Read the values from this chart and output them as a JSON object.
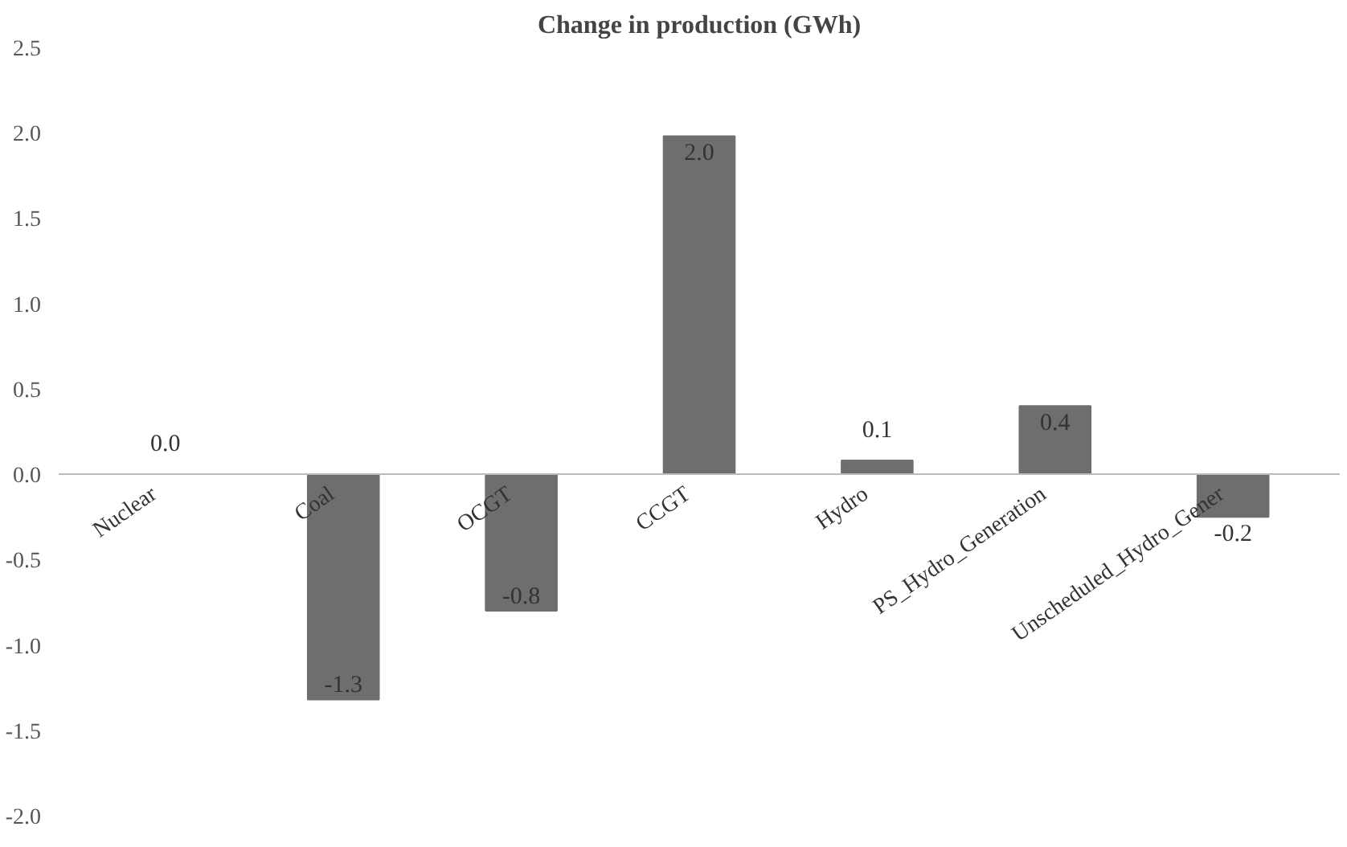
{
  "chart_data": {
    "type": "bar",
    "title": "Change in production (GWh)",
    "categories": [
      "Nuclear",
      "Coal",
      "OCGT",
      "CCGT",
      "Hydro",
      "PS_Hydro_Generation",
      "Unscheduled_Hydro_Gener"
    ],
    "values": [
      0.0,
      -1.32,
      -0.8,
      1.98,
      0.08,
      0.4,
      -0.25
    ],
    "value_labels": [
      "0.0",
      "-1.3",
      "-0.8",
      "2.0",
      "0.1",
      "0.4",
      "-0.2"
    ],
    "color": "#6e6e6e",
    "ylim": [
      -2.0,
      2.5
    ],
    "yticks": [
      {
        "value": -2.0,
        "label": "-2.0"
      },
      {
        "value": -1.5,
        "label": "-1.5"
      },
      {
        "value": -1.0,
        "label": "-1.0"
      },
      {
        "value": -0.5,
        "label": "-0.5"
      },
      {
        "value": 0.0,
        "label": "0.0"
      },
      {
        "value": 0.5,
        "label": "0.5"
      },
      {
        "value": 1.0,
        "label": "1.0"
      },
      {
        "value": 1.5,
        "label": "1.5"
      },
      {
        "value": 2.0,
        "label": "2.0"
      },
      {
        "value": 2.5,
        "label": "2.5"
      }
    ],
    "grid": false
  }
}
